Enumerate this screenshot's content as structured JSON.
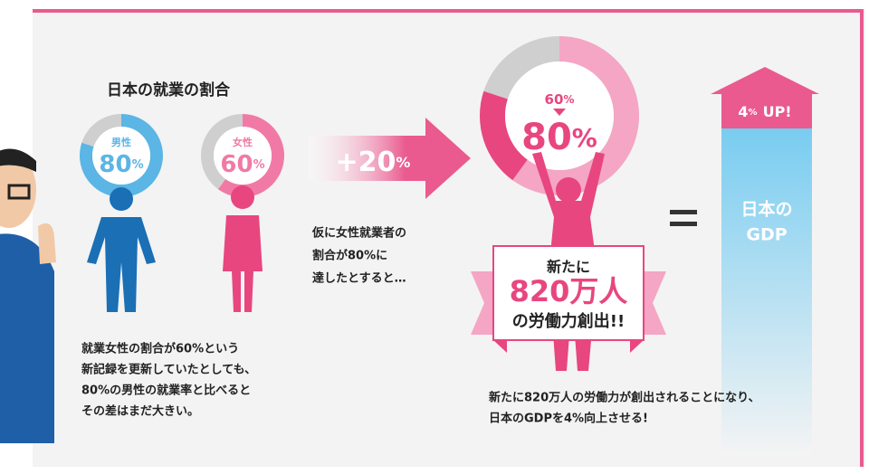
{
  "title": "日本の就業の割合",
  "donuts": [
    {
      "label": "男性",
      "value": 80,
      "unit": "%",
      "color": "#5bb5e5"
    },
    {
      "label": "女性",
      "value": 60,
      "unit": "%",
      "color": "#f07aa5"
    }
  ],
  "note_left": [
    "就業女性の割合が60%という",
    "新記録を更新していたとしても、",
    "80%の男性の就業率と比べると",
    "その差はまだ大きい。"
  ],
  "arrow": {
    "value": "+20",
    "unit": "%"
  },
  "note_mid": [
    "仮に女性就業者の",
    "割合が80%に",
    "達したとすると…"
  ],
  "big_donut": {
    "previous": 60,
    "previous_unit": "%",
    "value": 80,
    "unit": "%",
    "previous_color": "#f4a6c4",
    "color": "#e8467f"
  },
  "banner": {
    "line1": "新たに",
    "line2": "820万人",
    "line3": "の労働力創出!!"
  },
  "gdp": {
    "increase": 4,
    "unit": "%",
    "suffix": "UP!",
    "label": [
      "日本の",
      "GDP"
    ]
  },
  "note_bottom": [
    "新たに820万人の労働力が創出されることになり、",
    "日本のGDPを4%向上させる!"
  ]
}
